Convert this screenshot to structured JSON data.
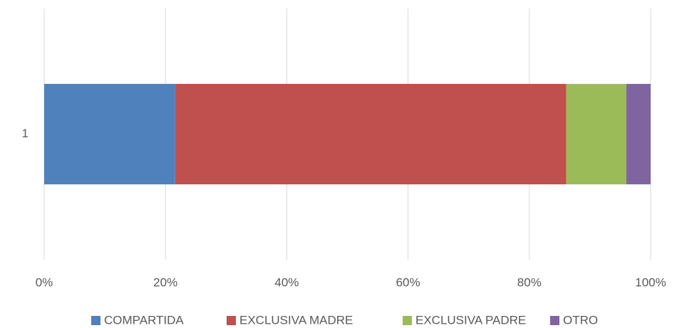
{
  "chart_data": {
    "type": "stacked_bar_horizontal",
    "categories": [
      "1"
    ],
    "series": [
      {
        "name": "COMPARTIDA",
        "color": "#4f81bd",
        "values": [
          21.6
        ]
      },
      {
        "name": "EXCLUSIVA MADRE",
        "color": "#c0504d",
        "values": [
          64.5
        ]
      },
      {
        "name": "EXCLUSIVA PADRE",
        "color": "#9bbb59",
        "values": [
          9.9
        ]
      },
      {
        "name": "OTRO",
        "color": "#8064a2",
        "values": [
          4.0
        ]
      }
    ],
    "xlim": [
      0,
      100
    ],
    "xticks": [
      {
        "value": 0,
        "label": "0%"
      },
      {
        "value": 20,
        "label": "20%"
      },
      {
        "value": 40,
        "label": "40%"
      },
      {
        "value": 60,
        "label": "60%"
      },
      {
        "value": 80,
        "label": "80%"
      },
      {
        "value": 100,
        "label": "100%"
      }
    ],
    "grid": true,
    "legend": "bottom"
  }
}
